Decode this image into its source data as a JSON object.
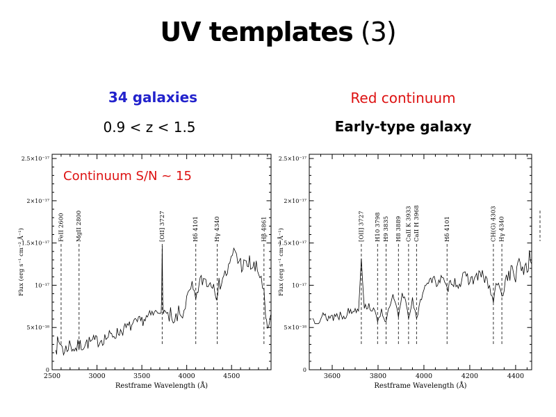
{
  "slide": {
    "title_main": "UV templates",
    "title_suffix": " (3)",
    "left_header": {
      "line1": "34 galaxies",
      "line2": "0.9 < z < 1.5"
    },
    "right_header": {
      "line1": "Red continuum",
      "line2": "Early-type galaxy"
    },
    "colors": {
      "blue_accent": "#2222cc",
      "red_accent": "#dd1111",
      "plot_ink": "#000000"
    }
  },
  "chart_data": [
    {
      "type": "line",
      "title": "",
      "annotation": "Continuum S/N ~ 15",
      "annotation_color": "#dd1111",
      "xlabel": "Restframe Wavelength (Å)",
      "ylabel": "Flux (erg s⁻¹ cm⁻² Å⁻¹)",
      "xlim": [
        2500,
        4940
      ],
      "xticks": [
        2500,
        3000,
        3500,
        4000,
        4500
      ],
      "x_minor_step": 100,
      "ylim": [
        0,
        25.5
      ],
      "y_units": "10⁻¹⁸ erg s⁻¹ cm⁻² Å⁻¹",
      "yticks": [
        {
          "v": 0,
          "label": "0"
        },
        {
          "v": 5,
          "label": "5×10⁻¹⁸"
        },
        {
          "v": 10,
          "label": "10⁻¹⁷"
        },
        {
          "v": 15,
          "label": "1.5×10⁻¹⁷"
        },
        {
          "v": 20,
          "label": "2×10⁻¹⁷"
        },
        {
          "v": 25,
          "label": "2.5×10⁻¹⁷"
        }
      ],
      "y_minor_step": 1,
      "legend": "off",
      "grid": "off",
      "spectral_lines": [
        {
          "label": "FeII 2600",
          "x": 2600
        },
        {
          "label": "MgII 2800",
          "x": 2800
        },
        {
          "label": "[OII] 3727",
          "x": 3727
        },
        {
          "label": "Hδ 4101",
          "x": 4101
        },
        {
          "label": "Hγ 4340",
          "x": 4340
        },
        {
          "label": "Hβ 4861",
          "x": 4861
        }
      ],
      "spectrum": [
        [
          2540,
          3.5,
          1.2
        ],
        [
          2560,
          2.5,
          1.5
        ],
        [
          2600,
          3.2,
          1.3
        ],
        [
          2640,
          2.0,
          1.2
        ],
        [
          2680,
          3.0,
          1.0
        ],
        [
          2720,
          2.8,
          1.0
        ],
        [
          2760,
          2.5,
          0.9
        ],
        [
          2800,
          2.8,
          0.9
        ],
        [
          2850,
          3.0,
          0.8
        ],
        [
          2900,
          3.2,
          0.8
        ],
        [
          3000,
          3.4,
          0.8
        ],
        [
          3100,
          3.8,
          0.8
        ],
        [
          3200,
          4.2,
          0.7
        ],
        [
          3300,
          4.8,
          0.7
        ],
        [
          3400,
          5.3,
          0.7
        ],
        [
          3500,
          5.8,
          0.7
        ],
        [
          3600,
          6.4,
          0.7
        ],
        [
          3680,
          6.9,
          0.6
        ],
        [
          3715,
          7.1,
          0.3
        ],
        [
          3721,
          8.5,
          0.2
        ],
        [
          3727,
          14.5,
          0.2
        ],
        [
          3733,
          8.0,
          0.2
        ],
        [
          3740,
          7.0,
          0.4
        ],
        [
          3760,
          6.8,
          0.8
        ],
        [
          3790,
          5.8,
          1.0
        ],
        [
          3820,
          6.5,
          0.9
        ],
        [
          3850,
          4.8,
          1.2
        ],
        [
          3880,
          6.0,
          1.0
        ],
        [
          3910,
          6.8,
          0.8
        ],
        [
          3940,
          6.2,
          0.9
        ],
        [
          3970,
          7.2,
          0.8
        ],
        [
          4000,
          8.2,
          0.8
        ],
        [
          4030,
          9.0,
          0.9
        ],
        [
          4060,
          9.6,
          0.9
        ],
        [
          4085,
          9.0,
          0.8
        ],
        [
          4101,
          7.8,
          0.6
        ],
        [
          4115,
          9.2,
          0.8
        ],
        [
          4150,
          10.4,
          0.9
        ],
        [
          4200,
          10.8,
          1.0
        ],
        [
          4250,
          10.2,
          1.1
        ],
        [
          4300,
          10.8,
          1.0
        ],
        [
          4330,
          9.0,
          0.9
        ],
        [
          4345,
          8.2,
          0.8
        ],
        [
          4360,
          10.0,
          0.9
        ],
        [
          4400,
          11.0,
          1.0
        ],
        [
          4440,
          11.4,
          1.0
        ],
        [
          4480,
          12.2,
          1.0
        ],
        [
          4510,
          13.5,
          0.9
        ],
        [
          4540,
          14.2,
          0.9
        ],
        [
          4570,
          13.0,
          1.0
        ],
        [
          4600,
          12.6,
          1.1
        ],
        [
          4650,
          12.2,
          1.1
        ],
        [
          4700,
          12.6,
          1.1
        ],
        [
          4750,
          12.0,
          1.2
        ],
        [
          4800,
          11.5,
          1.2
        ],
        [
          4830,
          11.0,
          1.0
        ],
        [
          4861,
          9.0,
          0.8
        ],
        [
          4880,
          6.0,
          0.8
        ],
        [
          4900,
          4.5,
          0.6
        ],
        [
          4920,
          5.5,
          0.5
        ],
        [
          4935,
          6.5,
          0.4
        ]
      ]
    },
    {
      "type": "line",
      "title": "",
      "annotation": "",
      "xlabel": "Restframe Wavelength (Å)",
      "ylabel": "Flux (erg s⁻¹ cm⁻² Å⁻¹)",
      "xlim": [
        3500,
        4470
      ],
      "xticks": [
        3600,
        3800,
        4000,
        4200,
        4400
      ],
      "x_minor_step": 50,
      "ylim": [
        0,
        25.5
      ],
      "y_units": "10⁻¹⁸ erg s⁻¹ cm⁻² Å⁻¹",
      "yticks": [
        {
          "v": 0,
          "label": "0"
        },
        {
          "v": 5,
          "label": "5×10⁻¹⁸"
        },
        {
          "v": 10,
          "label": "10⁻¹⁷"
        },
        {
          "v": 15,
          "label": "1.5×10⁻¹⁷"
        },
        {
          "v": 20,
          "label": "2×10⁻¹⁷"
        },
        {
          "v": 25,
          "label": "2.5×10⁻¹⁷"
        }
      ],
      "y_minor_step": 1,
      "legend": "off",
      "grid": "off",
      "right_edge_mark": true,
      "spectral_lines": [
        {
          "label": "[OII] 3727",
          "x": 3727
        },
        {
          "label": "H10 3798",
          "x": 3798
        },
        {
          "label": "H9 3835",
          "x": 3835
        },
        {
          "label": "H8 3889",
          "x": 3889
        },
        {
          "label": "CaII K 3933",
          "x": 3933
        },
        {
          "label": "CaII H 3968",
          "x": 3968
        },
        {
          "label": "Hδ 4101",
          "x": 4101
        },
        {
          "label": "CH(G) 4303",
          "x": 4303
        },
        {
          "label": "Hγ 4340",
          "x": 4340
        }
      ],
      "spectrum": [
        [
          3515,
          6.0,
          0.7
        ],
        [
          3550,
          6.2,
          0.7
        ],
        [
          3600,
          6.3,
          0.7
        ],
        [
          3650,
          6.6,
          0.7
        ],
        [
          3690,
          7.0,
          0.5
        ],
        [
          3715,
          7.2,
          0.3
        ],
        [
          3727,
          13.2,
          0.2
        ],
        [
          3740,
          7.4,
          0.3
        ],
        [
          3760,
          7.6,
          0.5
        ],
        [
          3780,
          7.0,
          0.4
        ],
        [
          3798,
          5.9,
          0.3
        ],
        [
          3815,
          7.0,
          0.4
        ],
        [
          3835,
          5.6,
          0.3
        ],
        [
          3850,
          7.5,
          0.4
        ],
        [
          3865,
          8.6,
          0.4
        ],
        [
          3878,
          7.6,
          0.3
        ],
        [
          3889,
          6.2,
          0.3
        ],
        [
          3905,
          8.8,
          0.4
        ],
        [
          3920,
          8.4,
          0.3
        ],
        [
          3933,
          6.1,
          0.3
        ],
        [
          3950,
          8.4,
          0.3
        ],
        [
          3968,
          5.9,
          0.3
        ],
        [
          3985,
          8.0,
          0.4
        ],
        [
          4000,
          9.8,
          0.5
        ],
        [
          4020,
          10.6,
          0.6
        ],
        [
          4050,
          10.4,
          0.7
        ],
        [
          4080,
          10.8,
          0.6
        ],
        [
          4101,
          9.4,
          0.5
        ],
        [
          4120,
          10.6,
          0.6
        ],
        [
          4150,
          10.2,
          0.8
        ],
        [
          4180,
          11.0,
          0.7
        ],
        [
          4210,
          10.6,
          0.8
        ],
        [
          4240,
          11.2,
          0.8
        ],
        [
          4270,
          10.8,
          0.8
        ],
        [
          4303,
          8.2,
          0.6
        ],
        [
          4320,
          10.4,
          0.6
        ],
        [
          4340,
          8.6,
          0.5
        ],
        [
          4360,
          11.0,
          0.8
        ],
        [
          4380,
          11.6,
          1.0
        ],
        [
          4400,
          11.2,
          1.2
        ],
        [
          4420,
          12.4,
          1.2
        ],
        [
          4440,
          12.0,
          1.3
        ],
        [
          4460,
          13.0,
          1.2
        ],
        [
          4470,
          12.5,
          1.0
        ]
      ]
    }
  ]
}
